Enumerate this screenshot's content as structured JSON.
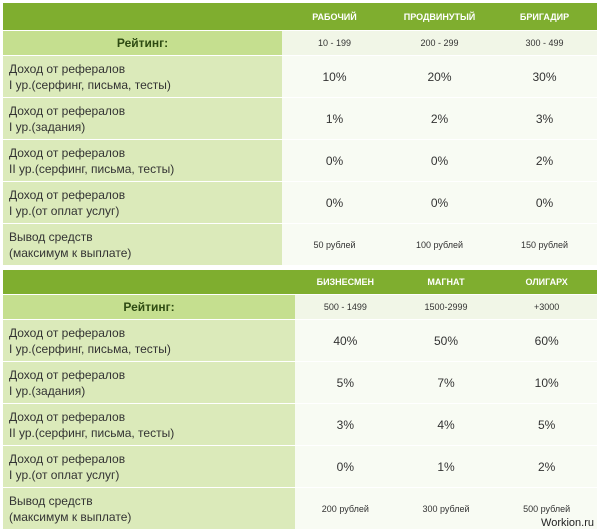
{
  "tables": [
    {
      "levels": [
        "РАБОЧИЙ",
        "ПРОДВИНУТЫЙ",
        "БРИГАДИР"
      ],
      "rating_label": "Рейтинг:",
      "ratings": [
        "10 - 199",
        "200 - 299",
        "300 - 499"
      ],
      "rows": [
        {
          "label1": "Доход от рефералов",
          "label2": "I ур.(серфинг, письма, тесты)",
          "values": [
            "10%",
            "20%",
            "30%"
          ]
        },
        {
          "label1": "Доход от рефералов",
          "label2": "I ур.(задания)",
          "values": [
            "1%",
            "2%",
            "3%"
          ]
        },
        {
          "label1": "Доход от рефералов",
          "label2": "II ур.(серфинг, письма, тесты)",
          "values": [
            "0%",
            "0%",
            "2%"
          ]
        },
        {
          "label1": "Доход от рефералов",
          "label2": "I ур.(от оплат услуг)",
          "values": [
            "0%",
            "0%",
            "0%"
          ]
        },
        {
          "label1": "Вывод средств",
          "label2": "(максимум к выплате)",
          "values": [
            "50 рублей",
            "100 рублей",
            "150 рублей"
          ]
        }
      ]
    },
    {
      "levels": [
        "БИЗНЕСМЕН",
        "МАГНАТ",
        "ОЛИГАРХ"
      ],
      "rating_label": "Рейтинг:",
      "ratings": [
        "500 - 1499",
        "1500-2999",
        "+3000"
      ],
      "rows": [
        {
          "label1": "Доход от рефералов",
          "label2": "I ур.(серфинг, письма, тесты)",
          "values": [
            "40%",
            "50%",
            "60%"
          ]
        },
        {
          "label1": "Доход от рефералов",
          "label2": "I ур.(задания)",
          "values": [
            "5%",
            "7%",
            "10%"
          ]
        },
        {
          "label1": "Доход от рефералов",
          "label2": "II ур.(серфинг, письма, тесты)",
          "values": [
            "3%",
            "4%",
            "5%"
          ]
        },
        {
          "label1": "Доход от рефералов",
          "label2": "I ур.(от оплат услуг)",
          "values": [
            "0%",
            "1%",
            "2%"
          ]
        },
        {
          "label1": "Вывод средств",
          "label2": "(максимум к выплате)",
          "values": [
            "200 рублей",
            "300 рублей",
            "500 рублей"
          ]
        }
      ]
    }
  ],
  "watermark": "Workion.ru",
  "colors": {
    "header": "#7fae2f",
    "rating_label_bg": "#c5df8f",
    "label_bg": "#dbeaba",
    "value_bg": "#f8fbf3"
  }
}
